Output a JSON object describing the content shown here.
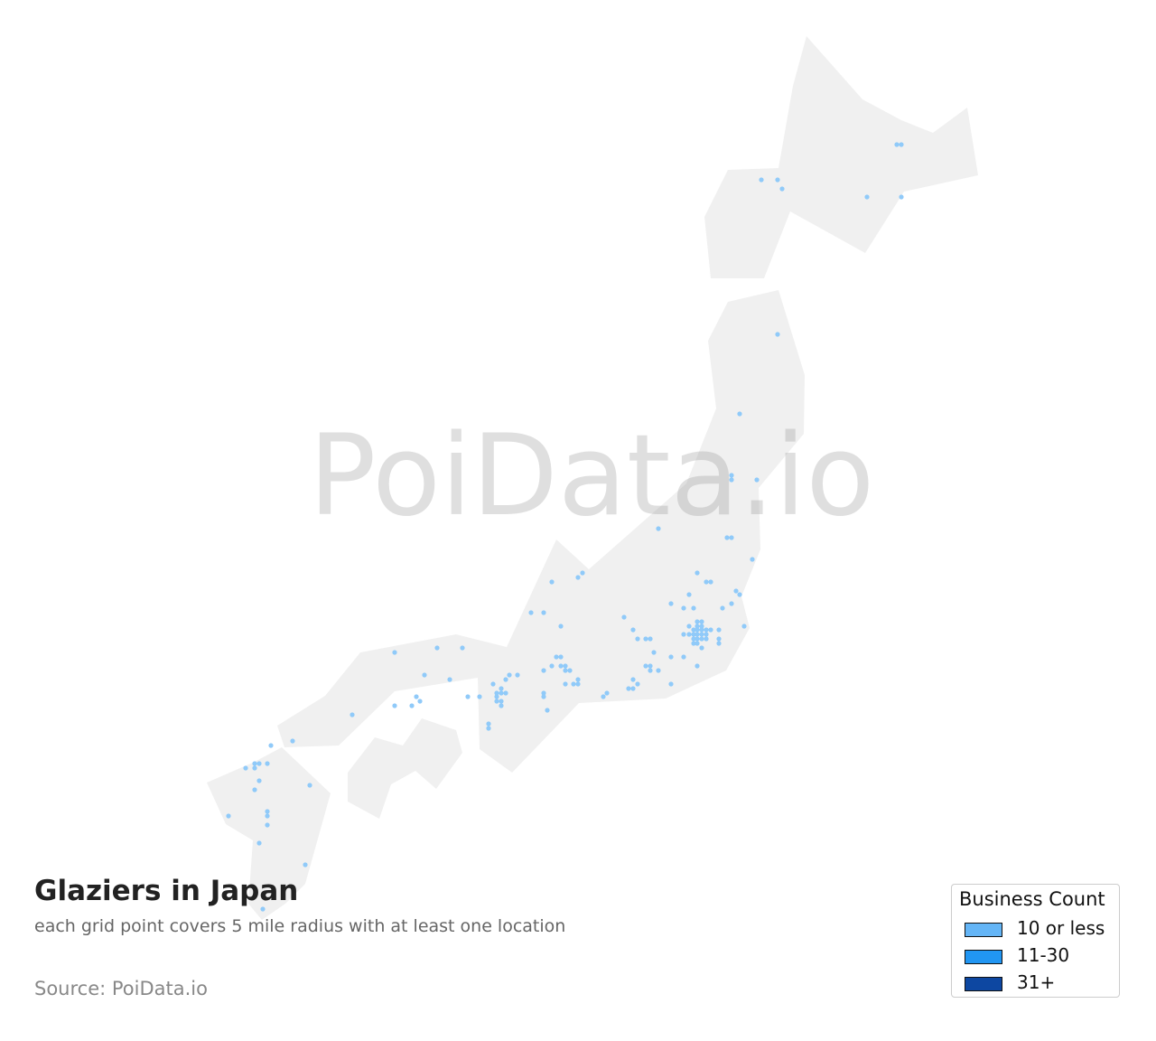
{
  "title": "Glaziers in Japan",
  "subtitle": "each grid point covers 5 mile radius with at least one location",
  "source": "Source: PoiData.io",
  "watermark": "PoiData.io",
  "legend": {
    "title": "Business Count",
    "items": [
      {
        "label": "10 or less",
        "color": "#64b5f6"
      },
      {
        "label": "11-30",
        "color": "#2196f3"
      },
      {
        "label": "31+",
        "color": "#0d47a1"
      }
    ]
  },
  "colors": {
    "land": "#f0f0f0",
    "point": "#90caf9"
  }
}
